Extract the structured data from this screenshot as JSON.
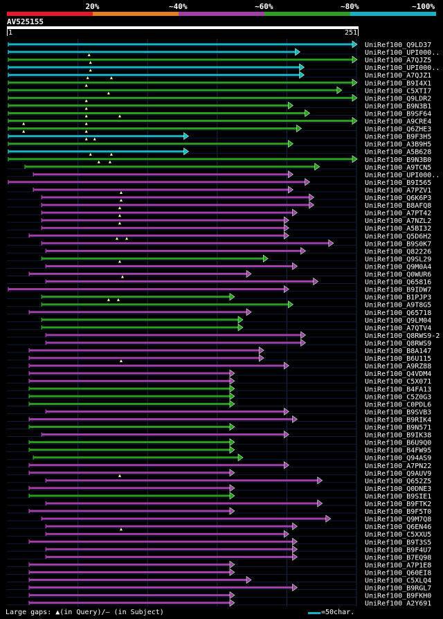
{
  "legend": [
    {
      "label": "",
      "color": "#e8182b"
    },
    {
      "label": "20%",
      "color": "#e57e1f"
    },
    {
      "label": "~40%",
      "color": "#a23fa8"
    },
    {
      "label": "~60%",
      "color": "#2e9e25"
    },
    {
      "label": "~80%",
      "color": "#17b0c4"
    },
    {
      "label": "~100%",
      "color": ""
    }
  ],
  "query": {
    "name": "AV525155",
    "start": "1",
    "end": "251"
  },
  "colors": {
    "cyan": "#17b6c6",
    "green": "#2b9d1e",
    "purple": "#a23fa8",
    "gridline": "#1a2a4a",
    "rowline": "#0b1a3a",
    "text": "#ffffff"
  },
  "footer": {
    "gaps_text": "Large gaps: ▲(in Query)/– (in Subject)",
    "scale_text": "=50char."
  },
  "chart_data": {
    "type": "alignment",
    "query_length": 251,
    "hits": [
      {
        "name": "UniRef100_Q9LD37",
        "color": "cyan",
        "start": 1,
        "end": 251,
        "marks": []
      },
      {
        "name": "UniRef100_UPI000..",
        "color": "cyan",
        "start": 1,
        "end": 210,
        "marks": []
      },
      {
        "name": "UniRef100_A7QJZ5",
        "color": "green",
        "start": 1,
        "end": 251,
        "marks": [
          59
        ]
      },
      {
        "name": "UniRef100_UPI000..",
        "color": "cyan",
        "start": 1,
        "end": 213,
        "marks": [
          60
        ]
      },
      {
        "name": "UniRef100_A7QJZ1",
        "color": "cyan",
        "start": 1,
        "end": 213,
        "marks": [
          60
        ]
      },
      {
        "name": "UniRef100_B9I4X1",
        "color": "green",
        "start": 1,
        "end": 251,
        "marks": [
          58,
          75
        ]
      },
      {
        "name": "UniRef100_C5XTI7",
        "color": "green",
        "start": 1,
        "end": 240,
        "marks": [
          57
        ]
      },
      {
        "name": "UniRef100_Q9LDR2",
        "color": "green",
        "start": 1,
        "end": 251,
        "marks": [
          73
        ]
      },
      {
        "name": "UniRef100_B9N3B1",
        "color": "green",
        "start": 1,
        "end": 205,
        "marks": [
          57
        ]
      },
      {
        "name": "UniRef100_B9SF64",
        "color": "green",
        "start": 1,
        "end": 217,
        "marks": [
          57
        ]
      },
      {
        "name": "UniRef100_A9CRE4",
        "color": "green",
        "start": 1,
        "end": 251,
        "marks": [
          57,
          81
        ]
      },
      {
        "name": "UniRef100_Q6ZHE3",
        "color": "green",
        "start": 1,
        "end": 211,
        "marks": [
          12,
          57
        ]
      },
      {
        "name": "UniRef100_B9F3H5",
        "color": "cyan",
        "start": 1,
        "end": 130,
        "marks": [
          12,
          57
        ]
      },
      {
        "name": "UniRef100_A3B9H5",
        "color": "green",
        "start": 1,
        "end": 205,
        "marks": [
          57,
          63
        ]
      },
      {
        "name": "UniRef100_A5B628",
        "color": "cyan",
        "start": 1,
        "end": 130,
        "marks": []
      },
      {
        "name": "UniRef100_B9N3B0",
        "color": "green",
        "start": 1,
        "end": 251,
        "marks": [
          60,
          75
        ]
      },
      {
        "name": "UniRef100_A9TCN5",
        "color": "green",
        "start": 13,
        "end": 224,
        "marks": [
          66,
          74
        ]
      },
      {
        "name": "UniRef100_UPI000..",
        "color": "purple",
        "start": 19,
        "end": 205,
        "marks": []
      },
      {
        "name": "UniRef100_B9I565",
        "color": "purple",
        "start": 1,
        "end": 217,
        "marks": []
      },
      {
        "name": "UniRef100_A7PZV1",
        "color": "purple",
        "start": 19,
        "end": 205,
        "marks": []
      },
      {
        "name": "UniRef100_Q6K6P3",
        "color": "purple",
        "start": 25,
        "end": 220,
        "marks": [
          82
        ]
      },
      {
        "name": "UniRef100_B8AFQ8",
        "color": "purple",
        "start": 25,
        "end": 220,
        "marks": [
          82
        ]
      },
      {
        "name": "UniRef100_A7PT42",
        "color": "purple",
        "start": 25,
        "end": 208,
        "marks": [
          81
        ]
      },
      {
        "name": "UniRef100_A7NZL2",
        "color": "purple",
        "start": 25,
        "end": 202,
        "marks": [
          81
        ]
      },
      {
        "name": "UniRef100_A5BI32",
        "color": "purple",
        "start": 25,
        "end": 202,
        "marks": [
          81
        ]
      },
      {
        "name": "UniRef100_Q5D6H2",
        "color": "purple",
        "start": 16,
        "end": 202,
        "marks": []
      },
      {
        "name": "UniRef100_B9S0K7",
        "color": "purple",
        "start": 25,
        "end": 234,
        "marks": [
          79,
          86
        ]
      },
      {
        "name": "UniRef100_Q82226",
        "color": "purple",
        "start": 28,
        "end": 214,
        "marks": []
      },
      {
        "name": "UniRef100_Q9SL29",
        "color": "green",
        "start": 25,
        "end": 187,
        "marks": []
      },
      {
        "name": "UniRef100_Q9M0A4",
        "color": "purple",
        "start": 28,
        "end": 208,
        "marks": [
          81
        ]
      },
      {
        "name": "UniRef100_Q0WUR6",
        "color": "purple",
        "start": 16,
        "end": 175,
        "marks": []
      },
      {
        "name": "UniRef100_Q65816",
        "color": "purple",
        "start": 28,
        "end": 223,
        "marks": [
          83
        ]
      },
      {
        "name": "UniRef100_B9IDW7",
        "color": "purple",
        "start": 1,
        "end": 202,
        "marks": []
      },
      {
        "name": "UniRef100_B1PJP3",
        "color": "green",
        "start": 25,
        "end": 163,
        "marks": []
      },
      {
        "name": "UniRef100_A9T8G5",
        "color": "green",
        "start": 25,
        "end": 205,
        "marks": [
          73,
          80
        ]
      },
      {
        "name": "UniRef100_Q65718",
        "color": "purple",
        "start": 16,
        "end": 175,
        "marks": []
      },
      {
        "name": "UniRef100_Q9LM04",
        "color": "green",
        "start": 25,
        "end": 169,
        "marks": []
      },
      {
        "name": "UniRef100_A7QTV4",
        "color": "green",
        "start": 25,
        "end": 169,
        "marks": []
      },
      {
        "name": "UniRef100_Q8RWS9-2",
        "color": "purple",
        "start": 28,
        "end": 214,
        "marks": []
      },
      {
        "name": "UniRef100_Q8RWS9",
        "color": "purple",
        "start": 28,
        "end": 214,
        "marks": []
      },
      {
        "name": "UniRef100_B8A147",
        "color": "purple",
        "start": 16,
        "end": 184,
        "marks": []
      },
      {
        "name": "UniRef100_B6U115",
        "color": "purple",
        "start": 16,
        "end": 184,
        "marks": []
      },
      {
        "name": "UniRef100_A9RZ88",
        "color": "purple",
        "start": 16,
        "end": 202,
        "marks": [
          82
        ]
      },
      {
        "name": "UniRef100_Q4VDM4",
        "color": "purple",
        "start": 16,
        "end": 163,
        "marks": []
      },
      {
        "name": "UniRef100_C5X071",
        "color": "purple",
        "start": 16,
        "end": 163,
        "marks": []
      },
      {
        "name": "UniRef100_B4FA13",
        "color": "green",
        "start": 16,
        "end": 163,
        "marks": []
      },
      {
        "name": "UniRef100_C5Z0G3",
        "color": "green",
        "start": 16,
        "end": 163,
        "marks": []
      },
      {
        "name": "UniRef100_C0PDL6",
        "color": "green",
        "start": 16,
        "end": 163,
        "marks": []
      },
      {
        "name": "UniRef100_B9SVB3",
        "color": "purple",
        "start": 28,
        "end": 202,
        "marks": []
      },
      {
        "name": "UniRef100_B9RIK4",
        "color": "purple",
        "start": 16,
        "end": 208,
        "marks": []
      },
      {
        "name": "UniRef100_B9N571",
        "color": "green",
        "start": 16,
        "end": 163,
        "marks": []
      },
      {
        "name": "UniRef100_B9IK38",
        "color": "purple",
        "start": 25,
        "end": 202,
        "marks": []
      },
      {
        "name": "UniRef100_B6U9Q0",
        "color": "green",
        "start": 16,
        "end": 163,
        "marks": []
      },
      {
        "name": "UniRef100_B4FW95",
        "color": "green",
        "start": 16,
        "end": 163,
        "marks": []
      },
      {
        "name": "UniRef100_Q94AS9",
        "color": "green",
        "start": 19,
        "end": 169,
        "marks": []
      },
      {
        "name": "UniRef100_A7PN22",
        "color": "purple",
        "start": 16,
        "end": 202,
        "marks": []
      },
      {
        "name": "UniRef100_Q9AUV9",
        "color": "purple",
        "start": 16,
        "end": 163,
        "marks": []
      },
      {
        "name": "UniRef100_Q652Z5",
        "color": "purple",
        "start": 28,
        "end": 226,
        "marks": [
          81
        ]
      },
      {
        "name": "UniRef100_Q0DNE3",
        "color": "purple",
        "start": 16,
        "end": 163,
        "marks": []
      },
      {
        "name": "UniRef100_B9SIE1",
        "color": "green",
        "start": 16,
        "end": 163,
        "marks": []
      },
      {
        "name": "UniRef100_B9FTK2",
        "color": "purple",
        "start": 28,
        "end": 226,
        "marks": []
      },
      {
        "name": "UniRef100_B9F5T0",
        "color": "purple",
        "start": 16,
        "end": 163,
        "marks": []
      },
      {
        "name": "UniRef100_Q9M7Q8",
        "color": "purple",
        "start": 25,
        "end": 232,
        "marks": []
      },
      {
        "name": "UniRef100_Q6EN46",
        "color": "purple",
        "start": 28,
        "end": 208,
        "marks": []
      },
      {
        "name": "UniRef100_C5XXU5",
        "color": "purple",
        "start": 28,
        "end": 202,
        "marks": [
          82
        ]
      },
      {
        "name": "UniRef100_B9T3S5",
        "color": "purple",
        "start": 16,
        "end": 208,
        "marks": []
      },
      {
        "name": "UniRef100_B9F4U7",
        "color": "purple",
        "start": 28,
        "end": 208,
        "marks": []
      },
      {
        "name": "UniRef100_B7EQ98",
        "color": "purple",
        "start": 28,
        "end": 208,
        "marks": []
      },
      {
        "name": "UniRef100_A7P1E8",
        "color": "purple",
        "start": 16,
        "end": 163,
        "marks": []
      },
      {
        "name": "UniRef100_Q60EI8",
        "color": "purple",
        "start": 16,
        "end": 163,
        "marks": []
      },
      {
        "name": "UniRef100_C5XLQ4",
        "color": "purple",
        "start": 16,
        "end": 175,
        "marks": []
      },
      {
        "name": "UniRef100_B9RGL7",
        "color": "purple",
        "start": 16,
        "end": 208,
        "marks": []
      },
      {
        "name": "UniRef100_B9FKH0",
        "color": "purple",
        "start": 16,
        "end": 163,
        "marks": []
      },
      {
        "name": "UniRef100_A2Y691",
        "color": "purple",
        "start": 16,
        "end": 163,
        "marks": []
      }
    ]
  }
}
